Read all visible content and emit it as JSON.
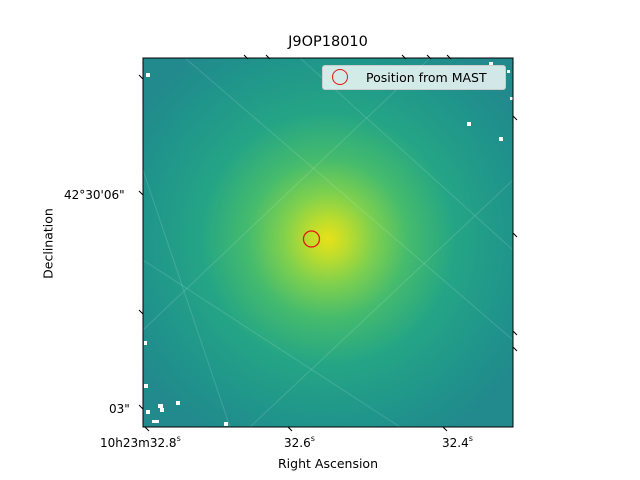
{
  "chart_data": {
    "type": "scatter",
    "title": "J9OP18010",
    "xlabel": "Right Ascension",
    "ylabel": "Declination",
    "x_ticks": [
      "32.8",
      "32.6",
      "32.4"
    ],
    "x_tick_prefix": "10h23m",
    "x_tick_unit": "s",
    "y_ticks": [
      "42°30'06\"",
      "03\""
    ],
    "legend": [
      "Position from MAST"
    ],
    "legend_position": "upper-right",
    "marker_color": "#e8140e",
    "colormap": "viridis",
    "series": [
      {
        "name": "Position from MAST",
        "ra_s": 32.57,
        "dec": "42°30'05.2\""
      }
    ]
  }
}
